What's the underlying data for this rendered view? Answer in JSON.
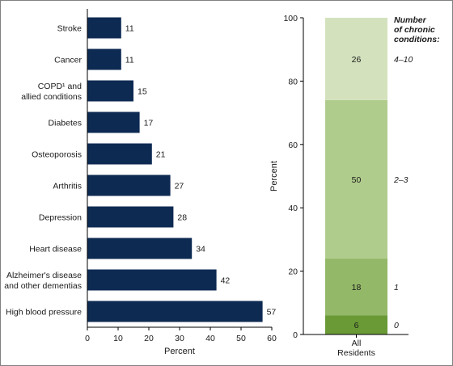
{
  "chart_data": [
    {
      "type": "bar",
      "orientation": "horizontal",
      "categories": [
        "Stroke",
        "Cancer",
        "COPD¹ and\nallied conditions",
        "Diabetes",
        "Osteoporosis",
        "Arthritis",
        "Depression",
        "Heart disease",
        "Alzheimer's disease\nand other dementias",
        "High blood pressure"
      ],
      "values": [
        11,
        11,
        15,
        17,
        21,
        27,
        28,
        34,
        42,
        57
      ],
      "xlabel": "Percent",
      "ylabel": "",
      "xlim": [
        0,
        60
      ],
      "xticks": [
        0,
        10,
        20,
        30,
        40,
        50,
        60
      ],
      "grid": false,
      "colors": {
        "bar": "#0d2a52",
        "axis": "#000000",
        "text": "#1a1a1a"
      }
    },
    {
      "type": "bar",
      "stacked": true,
      "categories": [
        "All\nResidents"
      ],
      "series": [
        {
          "name": "0",
          "values": [
            6
          ],
          "color": "#6a9a36"
        },
        {
          "name": "1",
          "values": [
            18
          ],
          "color": "#93b868"
        },
        {
          "name": "2–3",
          "values": [
            50
          ],
          "color": "#b0cc8c"
        },
        {
          "name": "4–10",
          "values": [
            26
          ],
          "color": "#d3e2bd"
        }
      ],
      "xlabel": "",
      "ylabel": "Percent",
      "ylim": [
        0,
        100
      ],
      "yticks": [
        0,
        20,
        40,
        60,
        80,
        100
      ],
      "grid": false,
      "legend_title": "Number\nof chronic\nconditions:",
      "legend_placement": "right"
    }
  ]
}
